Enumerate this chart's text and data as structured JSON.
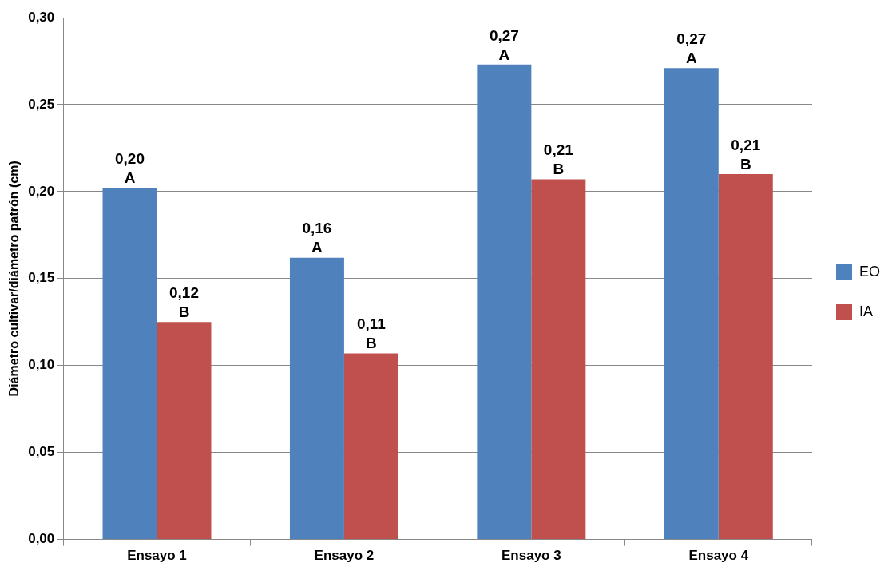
{
  "chart_data": {
    "type": "bar",
    "ylabel": "Diámetro cultivar/diámetro patrón (cm)",
    "categories": [
      "Ensayo 1",
      "Ensayo 2",
      "Ensayo 3",
      "Ensayo 4"
    ],
    "series": [
      {
        "name": "EO",
        "color": "#4f81bd",
        "values": [
          0.202,
          0.162,
          0.273,
          0.271
        ],
        "value_labels": [
          "0,20\nA",
          "0,16\nA",
          "0,27\nA",
          "0,27\nA"
        ]
      },
      {
        "name": "IA",
        "color": "#c0504d",
        "values": [
          0.125,
          0.107,
          0.207,
          0.21
        ],
        "value_labels": [
          "0,12\nB",
          "0,11\nB",
          "0,21\nB",
          "0,21\nB"
        ]
      }
    ],
    "ylim": [
      0,
      0.3
    ],
    "yticks": [
      {
        "value": 0,
        "label": "0,00"
      },
      {
        "value": 0.05,
        "label": "0,05"
      },
      {
        "value": 0.1,
        "label": "0,10"
      },
      {
        "value": 0.15,
        "label": "0,15"
      },
      {
        "value": 0.2,
        "label": "0,20"
      },
      {
        "value": 0.25,
        "label": "0,25"
      },
      {
        "value": 0.3,
        "label": "0,30"
      }
    ],
    "grid": "y",
    "legend": "right"
  }
}
